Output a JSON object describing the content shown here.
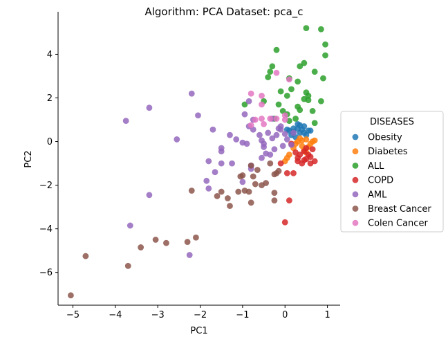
{
  "chart_data": {
    "type": "scatter",
    "title": "Algorithm: PCA  Dataset: pca_c",
    "xlabel": "PC1",
    "ylabel": "PC2",
    "xlim": [
      -5.35,
      1.3
    ],
    "ylim": [
      -7.5,
      5.95
    ],
    "xticks": [
      -5,
      -4,
      -3,
      -2,
      -1,
      0,
      1
    ],
    "yticks": [
      -6,
      -4,
      -2,
      0,
      2,
      4
    ],
    "grid": false,
    "legend": {
      "title": "DISEASES",
      "placement": "right"
    },
    "series": [
      {
        "name": "Obesity",
        "color": "#1f77b4",
        "points": [
          [
            0.2,
            0.6
          ],
          [
            0.3,
            0.8
          ],
          [
            0.45,
            0.7
          ],
          [
            0.55,
            0.5
          ],
          [
            0.35,
            0.4
          ],
          [
            0.15,
            0.3
          ],
          [
            0.25,
            0.2
          ],
          [
            0.4,
            0.55
          ],
          [
            0.5,
            0.3
          ],
          [
            0.3,
            0.6
          ],
          [
            0.2,
            0.45
          ],
          [
            0.45,
            0.4
          ],
          [
            0.1,
            0.5
          ],
          [
            0.6,
            0.5
          ],
          [
            0.35,
            0.75
          ],
          [
            0.05,
            0.55
          ]
        ]
      },
      {
        "name": "Diabetes",
        "color": "#ff7f0e",
        "points": [
          [
            0.3,
            0.0
          ],
          [
            0.4,
            -0.2
          ],
          [
            0.5,
            0.1
          ],
          [
            0.6,
            -0.1
          ],
          [
            0.2,
            -0.3
          ],
          [
            0.45,
            -0.4
          ],
          [
            0.55,
            -0.25
          ],
          [
            0.35,
            0.15
          ],
          [
            0.25,
            -0.1
          ],
          [
            0.65,
            0.0
          ],
          [
            0.1,
            -0.6
          ],
          [
            0.0,
            -0.9
          ],
          [
            0.05,
            -0.75
          ],
          [
            0.5,
            -0.5
          ],
          [
            0.4,
            0.05
          ],
          [
            0.7,
            0.05
          ]
        ]
      },
      {
        "name": "ALL",
        "color": "#2ca02c",
        "points": [
          [
            0.5,
            5.2
          ],
          [
            0.85,
            5.15
          ],
          [
            0.95,
            4.45
          ],
          [
            0.95,
            3.95
          ],
          [
            -0.2,
            4.2
          ],
          [
            -0.3,
            3.45
          ],
          [
            -0.35,
            3.2
          ],
          [
            0.35,
            3.45
          ],
          [
            0.45,
            3.6
          ],
          [
            0.7,
            3.2
          ],
          [
            0.9,
            2.9
          ],
          [
            0.1,
            2.9
          ],
          [
            -0.4,
            2.95
          ],
          [
            0.3,
            2.75
          ],
          [
            -0.1,
            2.3
          ],
          [
            0.05,
            2.1
          ],
          [
            0.15,
            2.4
          ],
          [
            0.5,
            2.25
          ],
          [
            0.55,
            2.1
          ],
          [
            0.45,
            1.95
          ],
          [
            0.55,
            1.9
          ],
          [
            0.85,
            1.85
          ],
          [
            -0.5,
            1.85
          ],
          [
            -0.95,
            1.7
          ],
          [
            -0.15,
            1.7
          ],
          [
            0.3,
            1.6
          ],
          [
            0.35,
            1.45
          ],
          [
            0.65,
            1.4
          ],
          [
            -0.05,
            1.4
          ],
          [
            -0.25,
            1.05
          ],
          [
            0.05,
            1.25
          ],
          [
            0.7,
            0.85
          ],
          [
            0.25,
            1.05
          ],
          [
            0.1,
            0.95
          ]
        ]
      },
      {
        "name": "COPD",
        "color": "#d62728",
        "points": [
          [
            0.0,
            -3.7
          ],
          [
            0.1,
            -2.7
          ],
          [
            0.05,
            -1.45
          ],
          [
            0.2,
            -1.45
          ],
          [
            -0.1,
            -1.0
          ],
          [
            0.3,
            -0.9
          ],
          [
            0.4,
            -1.0
          ],
          [
            0.5,
            -0.8
          ],
          [
            0.6,
            -1.0
          ],
          [
            0.7,
            -0.9
          ],
          [
            0.35,
            -0.6
          ],
          [
            0.45,
            -0.45
          ],
          [
            0.55,
            -0.6
          ],
          [
            0.65,
            -0.35
          ],
          [
            0.5,
            -0.3
          ],
          [
            0.25,
            -0.5
          ],
          [
            0.15,
            -0.1
          ],
          [
            0.3,
            -0.75
          ],
          [
            0.6,
            -0.7
          ],
          [
            0.45,
            -0.85
          ]
        ]
      },
      {
        "name": "AML",
        "color": "#9467bd",
        "points": [
          [
            -2.25,
            -5.2
          ],
          [
            -3.65,
            -3.85
          ],
          [
            -3.2,
            -2.45
          ],
          [
            -3.75,
            0.95
          ],
          [
            -3.2,
            1.55
          ],
          [
            -2.2,
            2.2
          ],
          [
            -2.05,
            1.2
          ],
          [
            -2.55,
            0.1
          ],
          [
            -1.7,
            0.55
          ],
          [
            -1.3,
            0.3
          ],
          [
            -1.5,
            -0.3
          ],
          [
            -1.5,
            -0.45
          ],
          [
            -1.5,
            -1.0
          ],
          [
            -1.65,
            -1.4
          ],
          [
            -1.8,
            -0.9
          ],
          [
            -1.8,
            -2.15
          ],
          [
            -1.85,
            -1.8
          ],
          [
            -1.25,
            -1.0
          ],
          [
            -1.15,
            0.1
          ],
          [
            -1.0,
            -0.05
          ],
          [
            -0.9,
            -0.1
          ],
          [
            -0.85,
            0.7
          ],
          [
            -0.75,
            0.55
          ],
          [
            -0.75,
            1.0
          ],
          [
            -0.6,
            0.3
          ],
          [
            -0.55,
            0.05
          ],
          [
            -0.5,
            -0.25
          ],
          [
            -0.45,
            -0.55
          ],
          [
            -0.35,
            -0.6
          ],
          [
            -0.3,
            0.15
          ],
          [
            -0.2,
            0.3
          ],
          [
            -0.15,
            0.6
          ],
          [
            -0.1,
            0.7
          ],
          [
            -0.05,
            -0.2
          ],
          [
            0.0,
            0.35
          ],
          [
            0.05,
            0.1
          ],
          [
            0.15,
            -0.15
          ],
          [
            -0.85,
            1.85
          ],
          [
            -0.95,
            1.25
          ],
          [
            -1.0,
            -1.85
          ],
          [
            -0.8,
            -1.1
          ],
          [
            -0.8,
            -1.25
          ],
          [
            -0.5,
            -0.1
          ],
          [
            -0.4,
            0.4
          ],
          [
            0.2,
            0.4
          ],
          [
            -0.55,
            -0.75
          ],
          [
            -0.25,
            -0.35
          ],
          [
            -0.1,
            0.55
          ],
          [
            -0.3,
            1.05
          ]
        ]
      },
      {
        "name": "Breast Cancer",
        "color": "#8c564b",
        "points": [
          [
            -5.05,
            -7.05
          ],
          [
            -4.7,
            -5.25
          ],
          [
            -3.7,
            -5.7
          ],
          [
            -3.4,
            -4.85
          ],
          [
            -3.05,
            -4.5
          ],
          [
            -2.8,
            -4.65
          ],
          [
            -2.3,
            -4.6
          ],
          [
            -2.1,
            -4.4
          ],
          [
            -2.2,
            -2.25
          ],
          [
            -1.6,
            -2.5
          ],
          [
            -1.5,
            -2.3
          ],
          [
            -1.35,
            -2.6
          ],
          [
            -1.3,
            -2.95
          ],
          [
            -1.1,
            -2.3
          ],
          [
            -1.0,
            -1.55
          ],
          [
            -0.95,
            -2.25
          ],
          [
            -0.85,
            -2.3
          ],
          [
            -0.8,
            -1.1
          ],
          [
            -0.8,
            -2.8
          ],
          [
            -0.75,
            -1.6
          ],
          [
            -0.7,
            -1.95
          ],
          [
            -0.65,
            -1.3
          ],
          [
            -0.55,
            -2.0
          ],
          [
            -0.45,
            -1.9
          ],
          [
            -0.35,
            -1.0
          ],
          [
            -0.25,
            -1.5
          ],
          [
            -0.25,
            -2.35
          ],
          [
            -0.2,
            -1.45
          ],
          [
            -0.25,
            -2.7
          ],
          [
            -0.15,
            -1.35
          ],
          [
            -1.05,
            -1.6
          ]
        ]
      },
      {
        "name": "Colen Cancer",
        "color": "#e377c2",
        "points": [
          [
            -0.8,
            2.2
          ],
          [
            -0.55,
            2.1
          ],
          [
            -0.2,
            3.15
          ],
          [
            0.1,
            2.85
          ],
          [
            -0.55,
            1.7
          ],
          [
            -0.7,
            1.0
          ],
          [
            -0.55,
            1.05
          ],
          [
            -0.35,
            1.05
          ],
          [
            -0.2,
            1.05
          ],
          [
            -0.5,
            0.8
          ],
          [
            -0.8,
            0.75
          ],
          [
            0.0,
            1.2
          ],
          [
            0.0,
            1.0
          ]
        ]
      }
    ]
  }
}
